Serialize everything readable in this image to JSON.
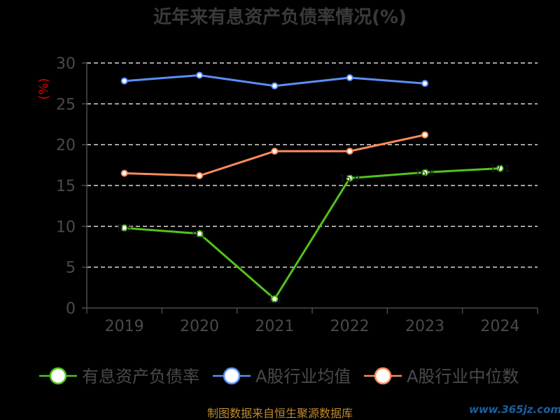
{
  "chart_data": {
    "type": "line",
    "title": "近年来有息资产负债率情况(%)",
    "ylabel": "(%)",
    "xlabel": "",
    "categories": [
      "2019",
      "2020",
      "2021",
      "2022",
      "2023",
      "2024"
    ],
    "ylim": [
      0,
      30
    ],
    "yticks": [
      0,
      5,
      10,
      15,
      20,
      25,
      30
    ],
    "grid": true,
    "legend_position": "bottom",
    "series": [
      {
        "name": "有息资产负债率",
        "color": "#52c41a",
        "values": [
          9.8,
          9.1,
          1.1,
          15.9,
          16.6,
          17.1
        ]
      },
      {
        "name": "A股行业均值",
        "color": "#5b8ff9",
        "values": [
          27.8,
          28.5,
          27.2,
          28.2,
          27.5,
          null
        ]
      },
      {
        "name": "A股行业中位数",
        "color": "#ff8c5a",
        "values": [
          16.5,
          16.2,
          19.2,
          19.2,
          21.2,
          null
        ]
      }
    ]
  },
  "footer": {
    "source": "制图数据来自恒生聚源数据库",
    "watermark": "www.365jz.com"
  }
}
